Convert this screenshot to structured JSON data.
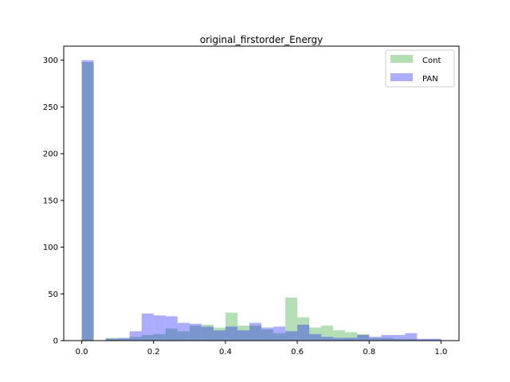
{
  "chart_data": {
    "type": "histogram",
    "title": "original_firstorder_Energy",
    "xlabel": "",
    "ylabel": "",
    "xlim": [
      -0.05,
      1.05
    ],
    "ylim": [
      0,
      315
    ],
    "x_ticks": [
      "0.0",
      "0.2",
      "0.4",
      "0.6",
      "0.8",
      "1.0"
    ],
    "x_tick_values": [
      0.0,
      0.2,
      0.4,
      0.6,
      0.8,
      1.0
    ],
    "y_ticks": [
      "0",
      "50",
      "100",
      "150",
      "200",
      "250",
      "300"
    ],
    "y_tick_values": [
      0,
      50,
      100,
      150,
      200,
      250,
      300
    ],
    "grid": false,
    "legend": "top-right",
    "bin_edges": [
      0.0,
      0.0333,
      0.0667,
      0.1,
      0.1333,
      0.1667,
      0.2,
      0.2333,
      0.2667,
      0.3,
      0.3333,
      0.3667,
      0.4,
      0.4333,
      0.4667,
      0.5,
      0.5333,
      0.5667,
      0.6,
      0.6333,
      0.6667,
      0.7,
      0.7333,
      0.7667,
      0.8,
      0.8333,
      0.8667,
      0.9,
      0.9333,
      0.9667,
      1.0
    ],
    "series": [
      {
        "name": "Cont",
        "color": "#2ca02c",
        "alpha": 0.35,
        "values": [
          298,
          0,
          3,
          2,
          4,
          6,
          7,
          13,
          10,
          16,
          17,
          14,
          30,
          16,
          16,
          12,
          8,
          46,
          25,
          14,
          16,
          11,
          9,
          7,
          3,
          3,
          2,
          2,
          1,
          1
        ]
      },
      {
        "name": "PAN",
        "color": "#0000ff",
        "alpha": 0.32,
        "values": [
          300,
          0,
          2,
          3,
          10,
          29,
          27,
          26,
          19,
          18,
          15,
          11,
          15,
          11,
          19,
          14,
          15,
          10,
          17,
          7,
          4,
          3,
          3,
          6,
          4,
          6,
          6,
          8,
          2,
          2
        ]
      }
    ]
  }
}
